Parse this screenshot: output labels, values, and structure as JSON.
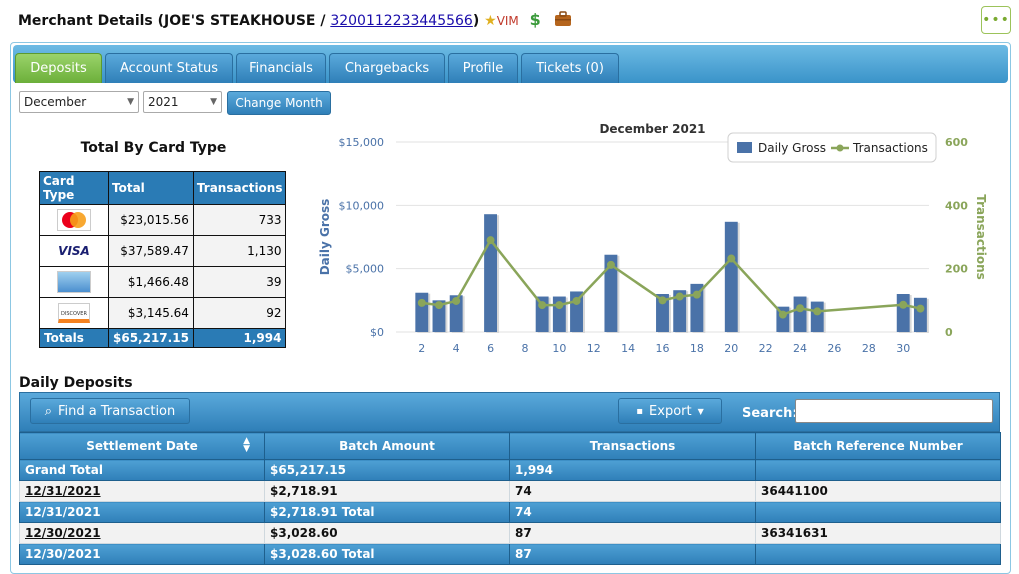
{
  "header": {
    "title_prefix": "Merchant Details (JOE'S STEAKHOUSE / ",
    "merchant_id": "3200112233445566",
    "title_suffix": ")",
    "vim": "VIM",
    "dollar": "$",
    "more": "•••"
  },
  "tabs": [
    "Deposits",
    "Account Status",
    "Financials",
    "Chargebacks",
    "Profile",
    "Tickets (0)"
  ],
  "controls": {
    "month": "December",
    "year": "2021",
    "change_month": "Change Month"
  },
  "card_totals": {
    "title": "Total By Card Type",
    "headers": [
      "Card Type",
      "Total",
      "Transactions"
    ],
    "rows": [
      {
        "card": "mastercard",
        "total": "$23,015.56",
        "tx": "733"
      },
      {
        "card": "visa",
        "label": "VISA",
        "total": "$37,589.47",
        "tx": "1,130"
      },
      {
        "card": "amex",
        "total": "$1,466.48",
        "tx": "39"
      },
      {
        "card": "discover",
        "label": "DISCOVER",
        "total": "$3,145.64",
        "tx": "92"
      }
    ],
    "totals": {
      "label": "Totals",
      "total": "$65,217.15",
      "tx": "1,994"
    }
  },
  "chart_data": {
    "type": "bar",
    "title": "December 2021",
    "ylabel": "Daily Gross",
    "y2label": "Transactions",
    "ylim": [
      0,
      15000
    ],
    "y2lim": [
      0,
      600
    ],
    "yticks": [
      "$0",
      "$5,000",
      "$10,000",
      "$15,000"
    ],
    "y2ticks": [
      "0",
      "200",
      "400",
      "600"
    ],
    "xticks": [
      "2",
      "4",
      "6",
      "8",
      "10",
      "12",
      "14",
      "16",
      "18",
      "20",
      "22",
      "24",
      "26",
      "28",
      "30"
    ],
    "xlim": [
      1,
      31
    ],
    "legend": [
      "Daily Gross",
      "Transactions"
    ],
    "legend_position": "top-right",
    "bar_color": "#4a72a8",
    "line_color": "#8aa55a",
    "bars": [
      {
        "day": 2,
        "value": 3100
      },
      {
        "day": 3,
        "value": 2500
      },
      {
        "day": 4,
        "value": 2900
      },
      {
        "day": 6,
        "value": 9300
      },
      {
        "day": 9,
        "value": 2800
      },
      {
        "day": 10,
        "value": 2800
      },
      {
        "day": 11,
        "value": 3200
      },
      {
        "day": 13,
        "value": 6100
      },
      {
        "day": 16,
        "value": 3000
      },
      {
        "day": 17,
        "value": 3300
      },
      {
        "day": 18,
        "value": 3800
      },
      {
        "day": 20,
        "value": 8700
      },
      {
        "day": 23,
        "value": 2000
      },
      {
        "day": 24,
        "value": 2800
      },
      {
        "day": 25,
        "value": 2400
      },
      {
        "day": 30,
        "value": 3000
      },
      {
        "day": 31,
        "value": 2700
      }
    ],
    "line": [
      {
        "day": 2,
        "value": 92
      },
      {
        "day": 3,
        "value": 85
      },
      {
        "day": 4,
        "value": 98
      },
      {
        "day": 6,
        "value": 290
      },
      {
        "day": 9,
        "value": 85
      },
      {
        "day": 10,
        "value": 85
      },
      {
        "day": 11,
        "value": 98
      },
      {
        "day": 13,
        "value": 212
      },
      {
        "day": 16,
        "value": 100
      },
      {
        "day": 17,
        "value": 112
      },
      {
        "day": 18,
        "value": 118
      },
      {
        "day": 20,
        "value": 232
      },
      {
        "day": 23,
        "value": 55
      },
      {
        "day": 24,
        "value": 75
      },
      {
        "day": 25,
        "value": 65
      },
      {
        "day": 30,
        "value": 86
      },
      {
        "day": 31,
        "value": 74
      }
    ]
  },
  "daily_deposits": {
    "title": "Daily Deposits",
    "find_button": "Find a Transaction",
    "export_button": "Export",
    "search_label": "Search:",
    "search_value": "",
    "columns": [
      "Settlement Date",
      "Batch Amount",
      "Transactions",
      "Batch Reference Number"
    ],
    "rows": [
      {
        "kind": "blue",
        "date": "Grand Total",
        "amount": "$65,217.15",
        "tx": "1,994",
        "ref": ""
      },
      {
        "kind": "white",
        "date": "12/31/2021",
        "amount": "$2,718.91",
        "tx": "74",
        "ref": "36441100"
      },
      {
        "kind": "blue",
        "date": "12/31/2021",
        "amount": "$2,718.91 Total",
        "tx": "74",
        "ref": ""
      },
      {
        "kind": "white",
        "date": "12/30/2021",
        "amount": "$3,028.60",
        "tx": "87",
        "ref": "36341631"
      },
      {
        "kind": "blue",
        "date": "12/30/2021",
        "amount": "$3,028.60 Total",
        "tx": "87",
        "ref": ""
      }
    ]
  }
}
